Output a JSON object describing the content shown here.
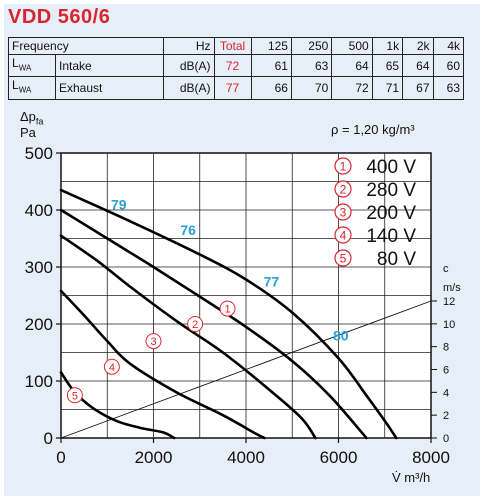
{
  "title": "VDD 560/6",
  "table": {
    "header": [
      "Frequency",
      "Hz",
      "Total",
      "125",
      "250",
      "500",
      "1k",
      "2k",
      "4k"
    ],
    "rows": [
      {
        "lwa": "L",
        "lwa_sub": "WA",
        "name": "Intake",
        "unit": "dB(A)",
        "total": "72",
        "values": [
          "61",
          "63",
          "64",
          "65",
          "64",
          "60"
        ]
      },
      {
        "lwa": "L",
        "lwa_sub": "WA",
        "name": "Exhaust",
        "unit": "dB(A)",
        "total": "77",
        "values": [
          "66",
          "70",
          "72",
          "71",
          "67",
          "63"
        ]
      }
    ]
  },
  "y_symbol": "Δp",
  "y_symbol_sub": "fa",
  "y_unit": "Pa",
  "density": "ρ = 1,20 kg/m³",
  "x_label": "V̇ m³/h",
  "right_axis_label": "c",
  "right_axis_unit": "m/s",
  "chart_data": {
    "type": "line",
    "title": "",
    "xlabel": "V̇ m³/h",
    "ylabel": "Δp Pa",
    "xlim": [
      0,
      8000
    ],
    "ylim": [
      0,
      500
    ],
    "x_ticks": [
      0,
      2000,
      4000,
      6000,
      8000
    ],
    "y_ticks": [
      0,
      100,
      200,
      300,
      400,
      500
    ],
    "grid": true,
    "series": [
      {
        "name": "400 V",
        "marker": "①",
        "points": [
          [
            0,
            435
          ],
          [
            1500,
            380
          ],
          [
            3000,
            322
          ],
          [
            4000,
            278
          ],
          [
            5000,
            220
          ],
          [
            6000,
            140
          ],
          [
            6600,
            75
          ],
          [
            7000,
            30
          ],
          [
            7250,
            0
          ]
        ]
      },
      {
        "name": "280 V",
        "marker": "②",
        "points": [
          [
            0,
            400
          ],
          [
            1000,
            350
          ],
          [
            2000,
            300
          ],
          [
            3000,
            248
          ],
          [
            4000,
            195
          ],
          [
            5000,
            135
          ],
          [
            5800,
            75
          ],
          [
            6500,
            10
          ],
          [
            6600,
            0
          ]
        ]
      },
      {
        "name": "200 V",
        "marker": "③",
        "points": [
          [
            0,
            355
          ],
          [
            800,
            310
          ],
          [
            1500,
            265
          ],
          [
            2500,
            205
          ],
          [
            3500,
            150
          ],
          [
            4500,
            85
          ],
          [
            5200,
            35
          ],
          [
            5500,
            0
          ]
        ]
      },
      {
        "name": "140 V",
        "marker": "④",
        "points": [
          [
            0,
            258
          ],
          [
            500,
            215
          ],
          [
            1000,
            170
          ],
          [
            1500,
            130
          ],
          [
            2500,
            80
          ],
          [
            3500,
            40
          ],
          [
            4200,
            8
          ],
          [
            4400,
            0
          ]
        ]
      },
      {
        "name": "80 V",
        "marker": "⑤",
        "points": [
          [
            0,
            115
          ],
          [
            300,
            80
          ],
          [
            700,
            52
          ],
          [
            1200,
            30
          ],
          [
            1700,
            18
          ],
          [
            2200,
            10
          ],
          [
            2450,
            0
          ]
        ]
      }
    ],
    "iso_labels": [
      {
        "text": "79",
        "x": 1250,
        "y": 410
      },
      {
        "text": "76",
        "x": 2750,
        "y": 365
      },
      {
        "text": "77",
        "x": 4550,
        "y": 275
      },
      {
        "text": "80",
        "x": 6050,
        "y": 180
      }
    ],
    "speed_axis": {
      "label": "c m/s",
      "ticks": [
        0,
        2,
        4,
        6,
        8,
        10,
        12
      ],
      "line": [
        [
          0,
          0
        ],
        [
          8000,
          12
        ]
      ]
    },
    "legend": [
      {
        "marker": "①",
        "label": "400 V"
      },
      {
        "marker": "②",
        "label": "280 V"
      },
      {
        "marker": "③",
        "label": "200 V"
      },
      {
        "marker": "④",
        "label": "140 V"
      },
      {
        "marker": "⑤",
        "label": "80 V"
      }
    ],
    "legend_position": "top-right"
  }
}
